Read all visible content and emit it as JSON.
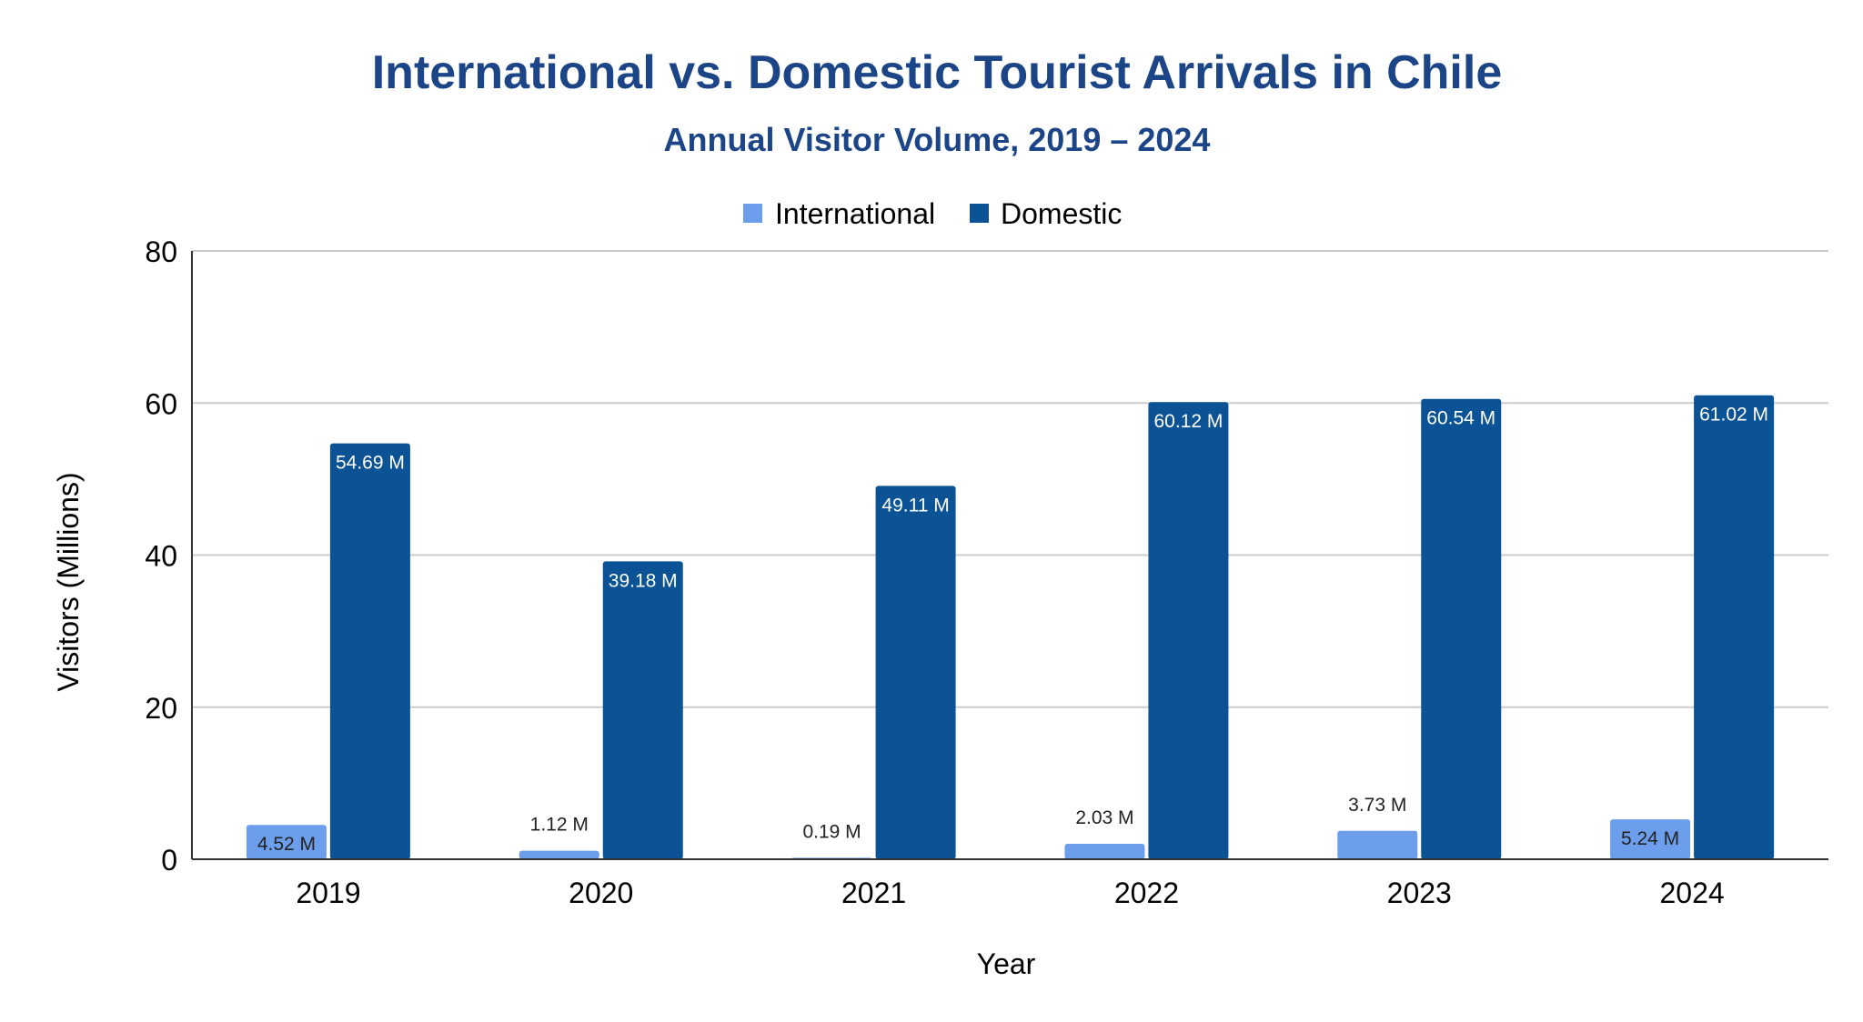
{
  "chart_data": {
    "type": "bar",
    "title": "International vs. Domestic Tourist Arrivals in Chile",
    "subtitle": "Annual Visitor Volume, 2019 – 2024",
    "xlabel": "Year",
    "ylabel": "Visitors (Millions)",
    "ylim": [
      0,
      80
    ],
    "yticks": [
      0,
      20,
      40,
      60,
      80
    ],
    "grid": true,
    "legend_position": "top-center",
    "categories": [
      "2019",
      "2020",
      "2021",
      "2022",
      "2023",
      "2024"
    ],
    "series": [
      {
        "name": "International",
        "color": "#6d9eeb",
        "values": [
          4.52,
          1.12,
          0.19,
          2.03,
          3.73,
          5.24
        ],
        "labels": [
          "4.52 M",
          "1.12 M",
          "0.19 M",
          "2.03 M",
          "3.73 M",
          "5.24 M"
        ]
      },
      {
        "name": "Domestic",
        "color": "#0b5394",
        "values": [
          54.69,
          39.18,
          49.11,
          60.12,
          60.54,
          61.02
        ],
        "labels": [
          "54.69 M",
          "39.18 M",
          "49.11 M",
          "60.12 M",
          "60.54 M",
          "61.02 M"
        ]
      }
    ],
    "colors": {
      "title": "#1c4587",
      "text": "#000000",
      "grid": "#cccccc",
      "axis": "#333333",
      "label_inside_dark": "#ffffff",
      "label_dark": "#222222"
    }
  }
}
